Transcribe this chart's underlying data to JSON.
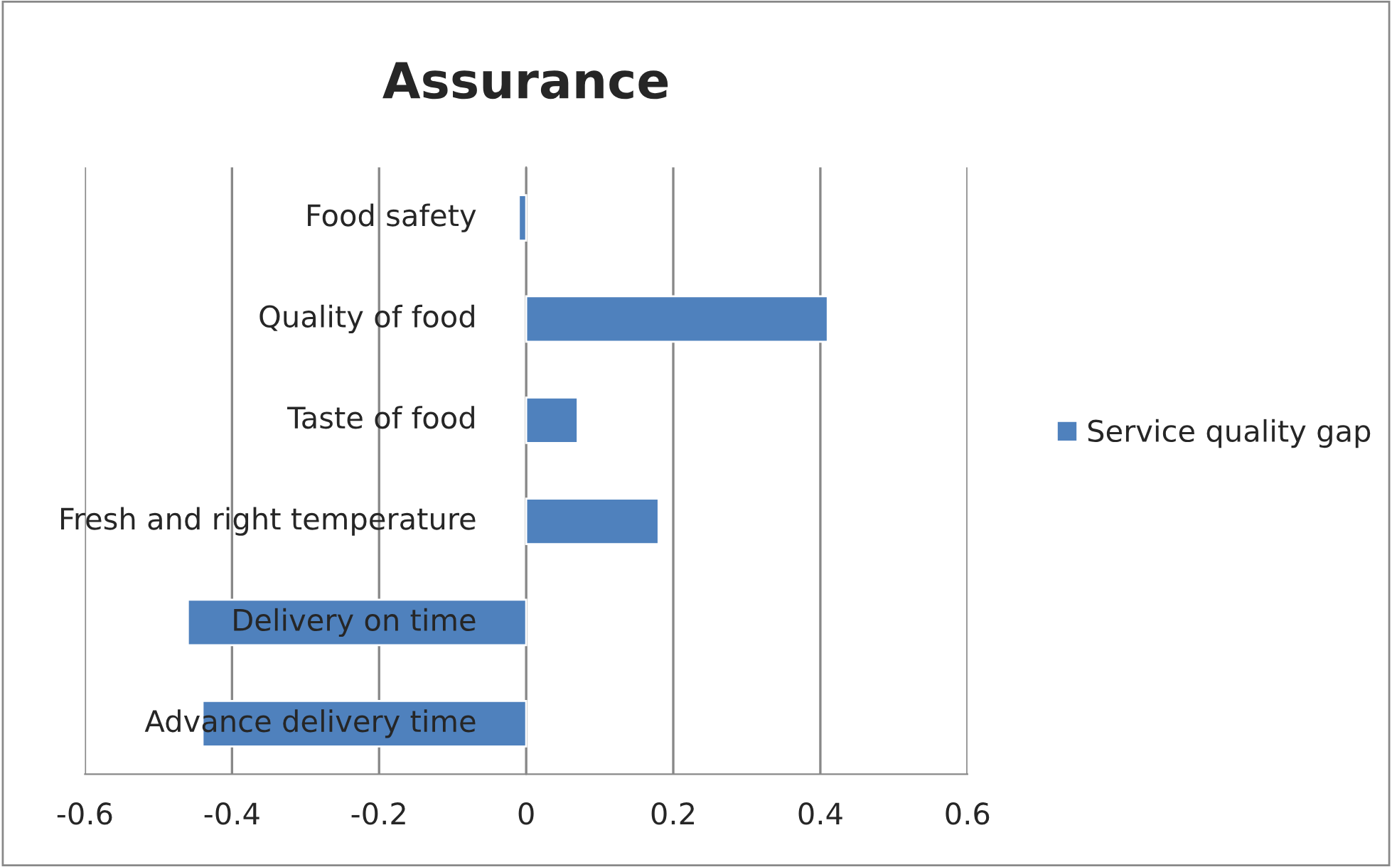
{
  "chart_data": {
    "type": "bar",
    "orientation": "horizontal",
    "title": "Assurance",
    "categories": [
      "Food safety",
      "Quality of food",
      "Taste of food",
      "Fresh and right temperature",
      "Delivery on time",
      "Advance delivery time"
    ],
    "series": [
      {
        "name": "Service quality gap",
        "color": "#4f81bd",
        "values": [
          -0.01,
          0.41,
          0.07,
          0.18,
          -0.46,
          -0.44
        ]
      }
    ],
    "xlim": [
      -0.6,
      0.6
    ],
    "xticks": [
      -0.6,
      -0.4,
      -0.2,
      0,
      0.2,
      0.4,
      0.6
    ],
    "grid": "x",
    "legend": "right"
  }
}
